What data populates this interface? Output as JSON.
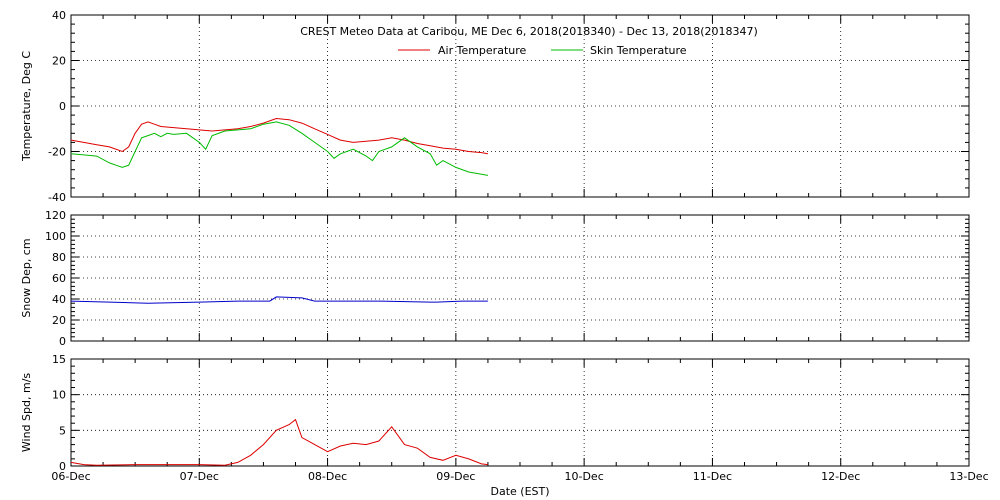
{
  "title": "CREST Meteo Data at Caribou, ME   Dec  6, 2018(2018340) - Dec 13, 2018(2018347)",
  "xlabel": "Date (EST)",
  "x_tick_labels": [
    "06-Dec",
    "07-Dec",
    "08-Dec",
    "09-Dec",
    "10-Dec",
    "11-Dec",
    "12-Dec",
    "13-Dec"
  ],
  "legend": [
    {
      "label": "Air Temperature",
      "color": "#dd0000"
    },
    {
      "label": "Skin Temperature",
      "color": "#00bb00"
    }
  ],
  "chart_data": [
    {
      "type": "line",
      "ylabel": "Temperature, Deg C",
      "ylim": [
        -40,
        40
      ],
      "yticks": [
        -40,
        -20,
        0,
        20,
        40
      ],
      "xlim": [
        0,
        7
      ],
      "grid": true,
      "legend_position": "top-center",
      "series": [
        {
          "name": "Air Temperature",
          "color": "#dd0000",
          "x": [
            0,
            0.1,
            0.2,
            0.3,
            0.4,
            0.45,
            0.5,
            0.55,
            0.6,
            0.65,
            0.7,
            0.8,
            0.9,
            1.0,
            1.1,
            1.2,
            1.3,
            1.4,
            1.5,
            1.6,
            1.7,
            1.8,
            1.9,
            2.0,
            2.1,
            2.2,
            2.3,
            2.4,
            2.5,
            2.6,
            2.7,
            2.8,
            2.9,
            3.0,
            3.1,
            3.2,
            3.25
          ],
          "values": [
            -15,
            -16,
            -17,
            -18,
            -20,
            -18,
            -12,
            -8,
            -7,
            -8,
            -9,
            -9.5,
            -10,
            -10.5,
            -11,
            -10.5,
            -10,
            -9,
            -7.5,
            -5.5,
            -6,
            -7.5,
            -10,
            -12.5,
            -15,
            -16,
            -15.5,
            -15,
            -14,
            -15,
            -16.5,
            -17.5,
            -18.5,
            -19,
            -20,
            -20.5,
            -21
          ]
        },
        {
          "name": "Skin Temperature",
          "color": "#00bb00",
          "x": [
            0,
            0.1,
            0.2,
            0.3,
            0.35,
            0.4,
            0.45,
            0.5,
            0.55,
            0.6,
            0.65,
            0.7,
            0.75,
            0.8,
            0.9,
            1.0,
            1.05,
            1.1,
            1.2,
            1.3,
            1.4,
            1.5,
            1.6,
            1.7,
            1.8,
            1.9,
            2.0,
            2.05,
            2.1,
            2.2,
            2.3,
            2.35,
            2.4,
            2.5,
            2.6,
            2.7,
            2.8,
            2.85,
            2.9,
            3.0,
            3.1,
            3.2,
            3.25
          ],
          "values": [
            -21,
            -21.5,
            -22,
            -25,
            -26,
            -27,
            -26,
            -20,
            -14,
            -13,
            -12,
            -13.5,
            -12,
            -12.5,
            -12,
            -16,
            -19,
            -13,
            -11,
            -10.5,
            -10,
            -8,
            -7,
            -8.5,
            -12,
            -16,
            -20,
            -23,
            -21,
            -19,
            -22,
            -24,
            -20,
            -18,
            -14,
            -18,
            -21,
            -26,
            -24,
            -27,
            -29,
            -30,
            -30.5
          ]
        }
      ]
    },
    {
      "type": "line",
      "ylabel": "Snow Dep, cm",
      "ylim": [
        0,
        120
      ],
      "yticks": [
        0,
        20,
        40,
        60,
        80,
        100,
        120
      ],
      "xlim": [
        0,
        7
      ],
      "grid": true,
      "series": [
        {
          "name": "",
          "color": "#0000cc",
          "x": [
            0,
            0.3,
            0.6,
            1.0,
            1.3,
            1.55,
            1.6,
            1.8,
            1.9,
            2.0,
            2.4,
            2.8,
            2.85,
            3.05,
            3.25
          ],
          "values": [
            38,
            37,
            36,
            37,
            38,
            38,
            42,
            41,
            38,
            38,
            38,
            37,
            37,
            38,
            38
          ]
        }
      ]
    },
    {
      "type": "line",
      "ylabel": "Wind Spd, m/s",
      "ylim": [
        0,
        15
      ],
      "yticks": [
        0,
        5,
        10,
        15
      ],
      "xlim": [
        0,
        7
      ],
      "grid": true,
      "series": [
        {
          "name": "",
          "color": "#dd0000",
          "x": [
            0,
            0.1,
            0.2,
            0.5,
            1.0,
            1.2,
            1.3,
            1.4,
            1.5,
            1.6,
            1.7,
            1.75,
            1.8,
            1.9,
            2.0,
            2.1,
            2.2,
            2.3,
            2.4,
            2.5,
            2.6,
            2.7,
            2.8,
            2.9,
            3.0,
            3.1,
            3.2,
            3.25
          ],
          "values": [
            0.5,
            0.2,
            0.1,
            0.2,
            0.2,
            0.1,
            0.5,
            1.5,
            3,
            5,
            5.8,
            6.5,
            4,
            3,
            2,
            2.8,
            3.2,
            3,
            3.5,
            5.5,
            3,
            2.5,
            1.2,
            0.8,
            1.5,
            1,
            0.3,
            0.2
          ]
        }
      ]
    }
  ]
}
